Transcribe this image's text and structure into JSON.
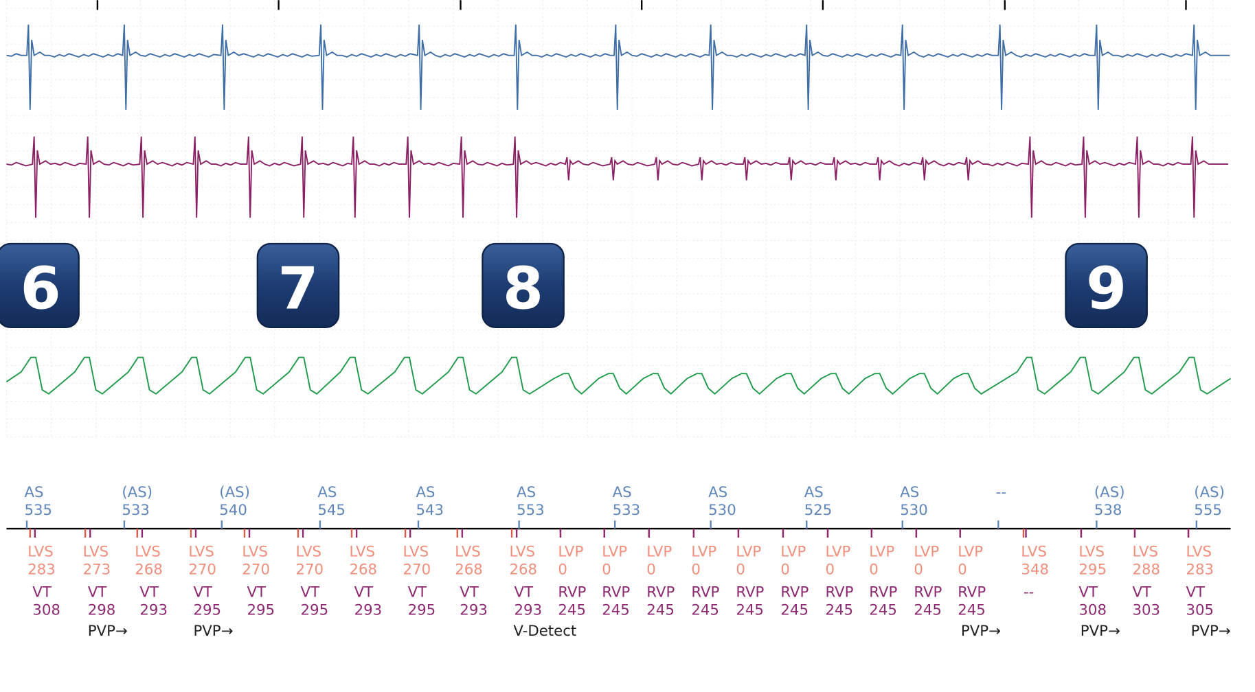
{
  "badges": [
    "6",
    "7",
    "8",
    "9"
  ],
  "atrial_markers": [
    {
      "label": "AS",
      "value": 535
    },
    {
      "label": "(AS)",
      "value": 533
    },
    {
      "label": "(AS)",
      "value": 540
    },
    {
      "label": "AS",
      "value": 545
    },
    {
      "label": "AS",
      "value": 543
    },
    {
      "label": "AS",
      "value": 553
    },
    {
      "label": "AS",
      "value": 533
    },
    {
      "label": "AS",
      "value": 530
    },
    {
      "label": "AS",
      "value": 525
    },
    {
      "label": "AS",
      "value": 530
    },
    {
      "label": "--"
    },
    {
      "label": "(AS)",
      "value": 538
    },
    {
      "label": "(AS)",
      "value": 555
    }
  ],
  "lv_markers": [
    {
      "label": "LVS",
      "value": 283
    },
    {
      "label": "LVS",
      "value": 273
    },
    {
      "label": "LVS",
      "value": 268
    },
    {
      "label": "LVS",
      "value": 270
    },
    {
      "label": "LVS",
      "value": 270
    },
    {
      "label": "LVS",
      "value": 270
    },
    {
      "label": "LVS",
      "value": 268
    },
    {
      "label": "LVS",
      "value": 270
    },
    {
      "label": "LVS",
      "value": 268
    },
    {
      "label": "LVS",
      "value": 268
    },
    {
      "label": "LVP",
      "value": 0
    },
    {
      "label": "LVP",
      "value": 0
    },
    {
      "label": "LVP",
      "value": 0
    },
    {
      "label": "LVP",
      "value": 0
    },
    {
      "label": "LVP",
      "value": 0
    },
    {
      "label": "LVP",
      "value": 0
    },
    {
      "label": "LVP",
      "value": 0
    },
    {
      "label": "LVP",
      "value": 0
    },
    {
      "label": "LVP",
      "value": 0
    },
    {
      "label": "LVP",
      "value": 0
    },
    {
      "label": "LVS",
      "value": 348
    },
    {
      "label": "LVS",
      "value": 295
    },
    {
      "label": "LVS",
      "value": 288
    },
    {
      "label": "LVS",
      "value": 283
    }
  ],
  "v_markers": [
    {
      "label": "VT",
      "value": 308
    },
    {
      "label": "VT",
      "value": 298
    },
    {
      "label": "VT",
      "value": 293
    },
    {
      "label": "VT",
      "value": 295
    },
    {
      "label": "VT",
      "value": 295
    },
    {
      "label": "VT",
      "value": 295
    },
    {
      "label": "VT",
      "value": 293
    },
    {
      "label": "VT",
      "value": 295
    },
    {
      "label": "VT",
      "value": 293
    },
    {
      "label": "VT",
      "value": 293
    },
    {
      "label": "RVP",
      "value": 245
    },
    {
      "label": "RVP",
      "value": 245
    },
    {
      "label": "RVP",
      "value": 245
    },
    {
      "label": "RVP",
      "value": 245
    },
    {
      "label": "RVP",
      "value": 245
    },
    {
      "label": "RVP",
      "value": 245
    },
    {
      "label": "RVP",
      "value": 245
    },
    {
      "label": "RVP",
      "value": 245
    },
    {
      "label": "RVP",
      "value": 245
    },
    {
      "label": "RVP",
      "value": 245
    },
    {
      "label": "--"
    },
    {
      "label": "VT",
      "value": 308
    },
    {
      "label": "VT",
      "value": 303
    },
    {
      "label": "VT",
      "value": 305
    }
  ],
  "annotations": [
    "PVP→",
    "PVP→",
    "V-Detect",
    "PVP→",
    "PVP→",
    "PVP→"
  ]
}
